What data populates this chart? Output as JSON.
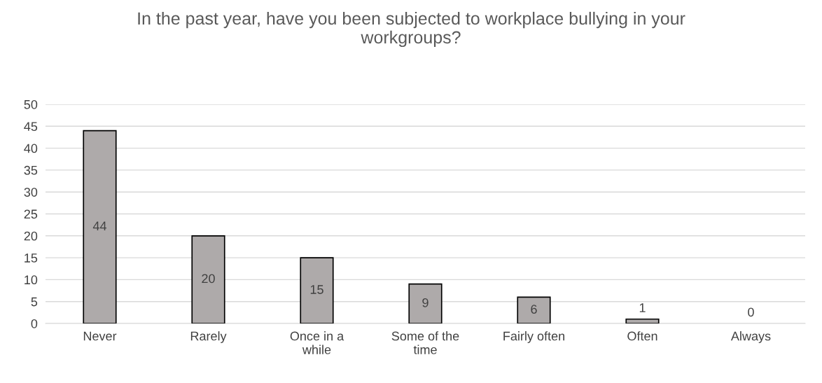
{
  "chart_data": {
    "type": "bar",
    "title": "In the past year, have you been subjected to workplace bullying in your workgroups?",
    "categories": [
      "Never",
      "Rarely",
      "Once in a while",
      "Some of the time",
      "Fairly often",
      "Often",
      "Always"
    ],
    "values": [
      44,
      20,
      15,
      9,
      6,
      1,
      0
    ],
    "color": "#aeaaaa",
    "ylim": [
      0,
      50
    ],
    "yticks": [
      0,
      5,
      10,
      15,
      20,
      25,
      30,
      35,
      40,
      45,
      50
    ],
    "grid": "y",
    "data_labels": true
  }
}
